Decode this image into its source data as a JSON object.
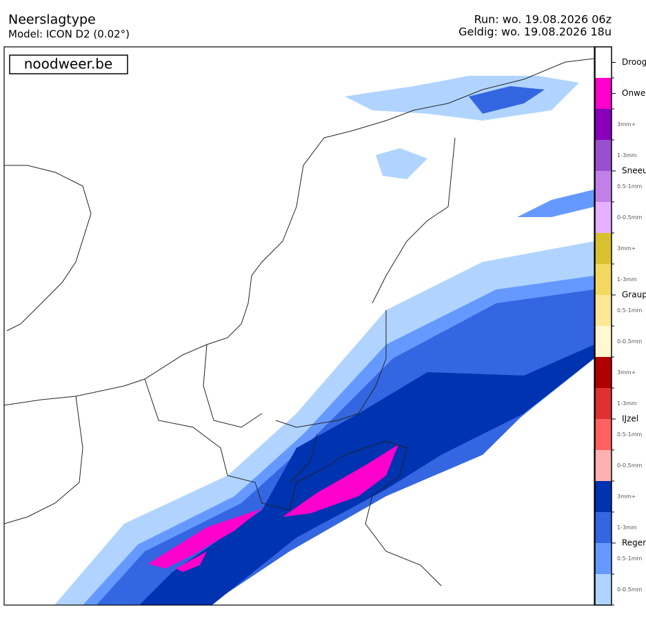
{
  "header": {
    "title": "Neerslagtype",
    "model": "Model: ICON D2 (0.02°)",
    "run": "Run: wo. 19.08.2026 06z",
    "valid": "Geldig: wo. 19.08.2026 18u"
  },
  "brand": "noodweer.be",
  "legend": {
    "items": [
      {
        "label": "Droog",
        "levels": [
          {
            "label": null,
            "color": "#ffffff"
          }
        ]
      },
      {
        "label": "Onwe",
        "levels": [
          {
            "label": null,
            "color": "#ff00cc"
          }
        ]
      },
      {
        "label": "Sneeu",
        "levels": [
          {
            "label": "3mm+",
            "color": "#8800bb"
          },
          {
            "label": "1-3mm",
            "color": "#9a4fd0"
          },
          {
            "label": "0.5-1mm",
            "color": "#c080e8"
          },
          {
            "label": "0-0.5mm",
            "color": "#e4b0ff"
          }
        ]
      },
      {
        "label": "Graup",
        "levels": [
          {
            "label": "3mm+",
            "color": "#d8c030"
          },
          {
            "label": "1-3mm",
            "color": "#f2d860"
          },
          {
            "label": "0.5-1mm",
            "color": "#fde898"
          },
          {
            "label": "0-0.5mm",
            "color": "#fff8d0"
          }
        ]
      },
      {
        "label": "IJzel",
        "levels": [
          {
            "label": "3mm+",
            "color": "#b00000"
          },
          {
            "label": "1-3mm",
            "color": "#e03030"
          },
          {
            "label": "0.5-1mm",
            "color": "#ff6060"
          },
          {
            "label": "0-0.5mm",
            "color": "#ffb0b0"
          }
        ]
      },
      {
        "label": "Regen",
        "levels": [
          {
            "label": "3mm+",
            "color": "#0033b0"
          },
          {
            "label": "1-3mm",
            "color": "#3366e0"
          },
          {
            "label": "0.5-1mm",
            "color": "#6699ff"
          },
          {
            "label": "0-0.5mm",
            "color": "#b0d4ff"
          }
        ]
      }
    ]
  }
}
